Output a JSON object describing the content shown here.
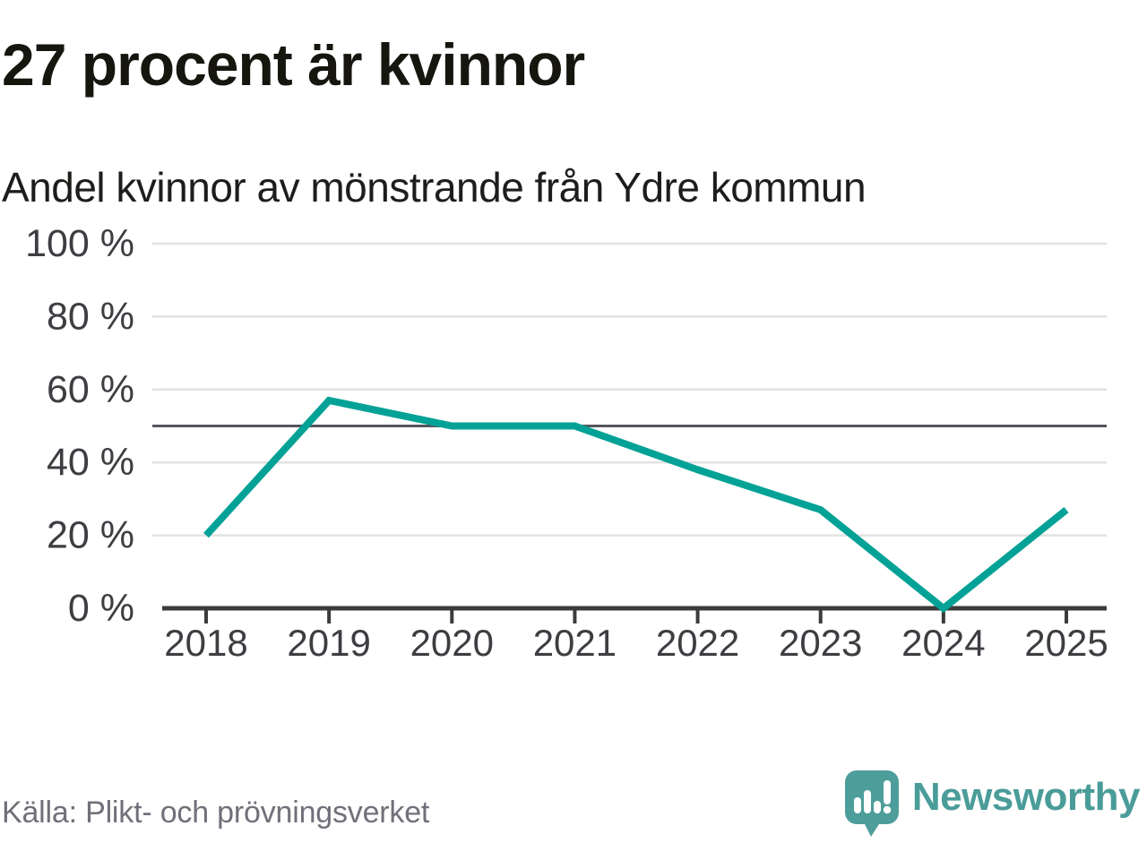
{
  "header": {
    "title": "27 procent är kvinnor",
    "subtitle": "Andel kvinnor av mönstrande från Ydre kommun"
  },
  "footer": {
    "source": "Källa: Plikt- och prövningsverket",
    "brand_name": "Newsworthy"
  },
  "colors": {
    "line": "#04a296",
    "gridline": "#e3e3e3",
    "reference_line": "#55565c",
    "axis": "#3b3b3b",
    "tick_label": "#3d3d42",
    "title_text": "#16160f",
    "subtitle_text": "#1d1d1b",
    "source_text": "#70707a",
    "brand_teal": "#4d9e9a",
    "brand_wordmark": "#4a9c99"
  },
  "chart_data": {
    "type": "line",
    "title": "27 procent är kvinnor",
    "subtitle": "Andel kvinnor av mönstrande från Ydre kommun",
    "categories": [
      "2018",
      "2019",
      "2020",
      "2021",
      "2022",
      "2023",
      "2024",
      "2025"
    ],
    "values": [
      20,
      57,
      50,
      50,
      38,
      27,
      0,
      27
    ],
    "unit": "%",
    "xlabel": "",
    "ylabel": "",
    "ylim": [
      0,
      100
    ],
    "yticks": [
      0,
      20,
      40,
      60,
      80,
      100
    ],
    "ytick_suffix": " %",
    "reference_line": 50,
    "grid": "horizontal",
    "legend": "none",
    "source": "Källa: Plikt- och prövningsverket"
  }
}
